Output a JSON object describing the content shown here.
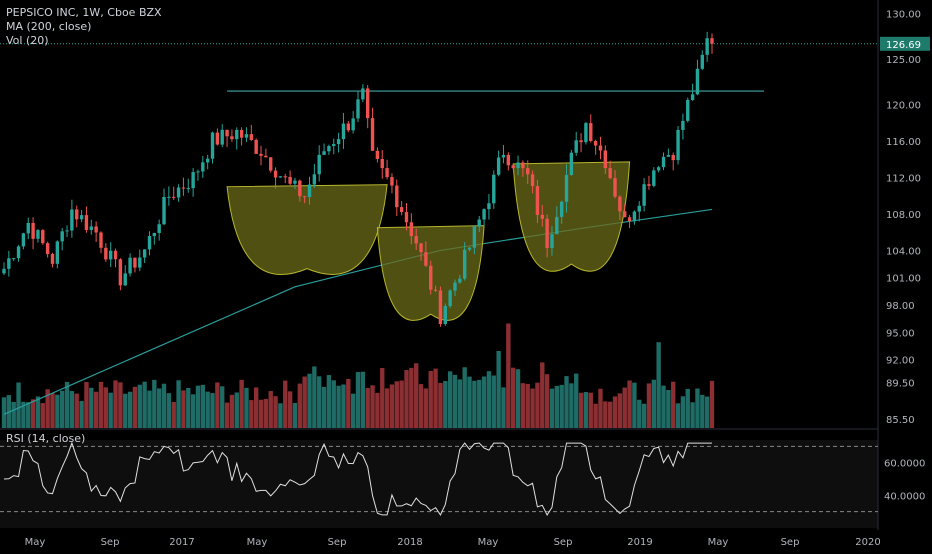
{
  "header": {
    "symbol_line": "PEPSICO INC, 1W, Cboe BZX",
    "ma_line": "MA (200, close)",
    "vol_line": "Vol (20)",
    "rsi_line": "RSI (14, close)"
  },
  "colors": {
    "background": "#000000",
    "up": "#26a69a",
    "down": "#ef5350",
    "vol_up": "#1f6b65",
    "vol_down": "#8c2f33",
    "ma": "#2a9d9a",
    "resistance": "#3fa7a3",
    "cup_fill": "#6b6b1a",
    "cup_stroke": "#b5b52e",
    "rsi_line": "#e0e0e0",
    "last_price_bg": "#1e7a6a",
    "axis_text": "#b2b5be"
  },
  "chart_data": {
    "type": "candlestick",
    "title": "PEPSICO INC, 1W, Cboe BZX",
    "price_axis": {
      "ticks": [
        "130.00",
        "125.00",
        "120.00",
        "116.00",
        "112.00",
        "108.00",
        "104.00",
        "101.00",
        "98.00",
        "95.00",
        "92.00",
        "89.50",
        "85.50"
      ],
      "last_price": "126.69"
    },
    "time_axis": {
      "ticks": [
        "May",
        "Sep",
        "2017",
        "May",
        "Sep",
        "2018",
        "May",
        "Sep",
        "2019",
        "May",
        "Sep",
        "2020"
      ]
    },
    "anchors": [
      {
        "t": 0,
        "close": 102
      },
      {
        "t": 5,
        "close": 107
      },
      {
        "t": 10,
        "close": 103
      },
      {
        "t": 14,
        "close": 108.5
      },
      {
        "t": 19,
        "close": 106
      },
      {
        "t": 24,
        "close": 101
      },
      {
        "t": 29,
        "close": 104
      },
      {
        "t": 34,
        "close": 110
      },
      {
        "t": 39,
        "close": 112
      },
      {
        "t": 43,
        "close": 116
      },
      {
        "t": 48,
        "close": 117
      },
      {
        "t": 53,
        "close": 115
      },
      {
        "t": 59,
        "close": 111
      },
      {
        "t": 62,
        "close": 110
      },
      {
        "t": 66,
        "close": 115
      },
      {
        "t": 71,
        "close": 118
      },
      {
        "t": 74,
        "close": 121
      },
      {
        "t": 76,
        "close": 114
      },
      {
        "t": 80,
        "close": 111
      },
      {
        "t": 85,
        "close": 105
      },
      {
        "t": 90,
        "close": 97
      },
      {
        "t": 95,
        "close": 103
      },
      {
        "t": 100,
        "close": 110
      },
      {
        "t": 103,
        "close": 115
      },
      {
        "t": 108,
        "close": 112
      },
      {
        "t": 112,
        "close": 105
      },
      {
        "t": 117,
        "close": 114
      },
      {
        "t": 120,
        "close": 118
      },
      {
        "t": 124,
        "close": 114
      },
      {
        "t": 128,
        "close": 107
      },
      {
        "t": 132,
        "close": 111
      },
      {
        "t": 135,
        "close": 114
      },
      {
        "t": 138,
        "close": 115
      },
      {
        "t": 141,
        "close": 120
      },
      {
        "t": 143,
        "close": 123
      },
      {
        "t": 145,
        "close": 127
      },
      {
        "t": 146,
        "close": 126.7
      }
    ],
    "ma_200": {
      "name": "MA (200, close)",
      "points": [
        [
          0,
          86
        ],
        [
          30,
          93
        ],
        [
          60,
          100
        ],
        [
          90,
          104
        ],
        [
          120,
          106.5
        ],
        [
          146,
          108.5
        ]
      ]
    },
    "resistance_level": 121.5,
    "cups": [
      {
        "t_start": 46,
        "t_end": 79,
        "rim": 111,
        "bottom": 102
      },
      {
        "t_start": 77,
        "t_end": 99,
        "rim": 106.5,
        "bottom": 97
      },
      {
        "t_start": 105,
        "t_end": 129,
        "rim": 113.5,
        "bottom": 102.5
      }
    ],
    "volume_axis": {
      "ylim": [
        0,
        100
      ]
    },
    "rsi": {
      "name": "RSI (14, close)",
      "ylim": [
        20,
        80
      ],
      "ticks": [
        "60.0000",
        "40.0000"
      ],
      "bands": [
        70,
        30
      ]
    }
  }
}
